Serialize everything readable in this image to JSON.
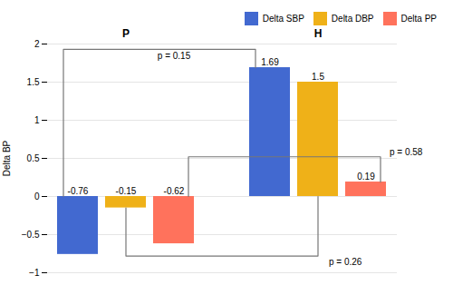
{
  "chart_data": {
    "type": "bar",
    "categories": [
      "P",
      "H"
    ],
    "series": [
      {
        "name": "Delta SBP",
        "values": [
          -0.76,
          1.69
        ]
      },
      {
        "name": "Delta DBP",
        "values": [
          -0.15,
          1.5
        ]
      },
      {
        "name": "Delta PP",
        "values": [
          -0.62,
          0.19
        ]
      }
    ],
    "ylabel": "Delta BP",
    "ylim": [
      -1.0,
      2.0
    ],
    "yticks": [
      {
        "value": -1.0,
        "label": "−1"
      },
      {
        "value": -0.5,
        "label": "−0.5"
      },
      0,
      0.5,
      1,
      1.5,
      2
    ],
    "grid": true,
    "legend": "upper right",
    "data_labels": true,
    "annotations": [
      "p = 0.15",
      "p = 0.26",
      "p = 0.58"
    ]
  }
}
